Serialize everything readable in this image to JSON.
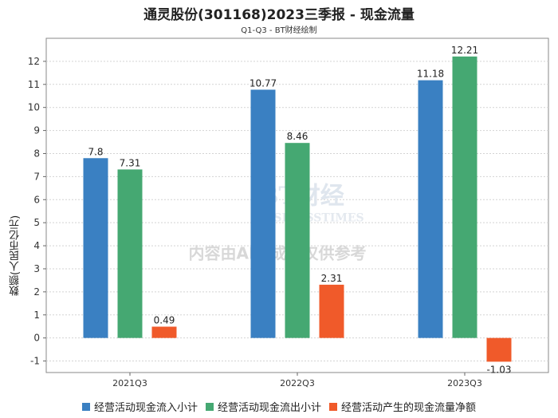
{
  "chart_data": {
    "type": "bar",
    "title": "通灵股份(301168)2023三季报 - 现金流量",
    "subtitle": "Q1-Q3 - BT财经绘制",
    "ylabel": "数额(人民币亿元)",
    "xlabel": "",
    "categories": [
      "2021Q3",
      "2022Q3",
      "2023Q3"
    ],
    "ylim": [
      -1.5,
      13
    ],
    "yticks": [
      -1,
      0,
      1,
      2,
      3,
      4,
      5,
      6,
      7,
      8,
      9,
      10,
      11,
      12
    ],
    "grid": true,
    "legend_position": "bottom",
    "series": [
      {
        "name": "经营活动现金流入小计",
        "color": "#3a80c2",
        "values": [
          7.8,
          10.77,
          11.18
        ],
        "labels": [
          "7.8",
          "10.77",
          "11.18"
        ]
      },
      {
        "name": "经营活动现金流出小计",
        "color": "#45a872",
        "values": [
          7.31,
          8.46,
          12.21
        ],
        "labels": [
          "7.31",
          "8.46",
          "12.21"
        ]
      },
      {
        "name": "经营活动产生的现金流量净额",
        "color": "#f05a2a",
        "values": [
          0.49,
          2.31,
          -1.03
        ],
        "labels": [
          "0.49",
          "2.31",
          "-1.03"
        ]
      }
    ],
    "watermark": {
      "logo": "BT财经",
      "logo_sub": "BUSINESSTIMES",
      "notice": "内容由AI生成，仅供参考"
    }
  }
}
